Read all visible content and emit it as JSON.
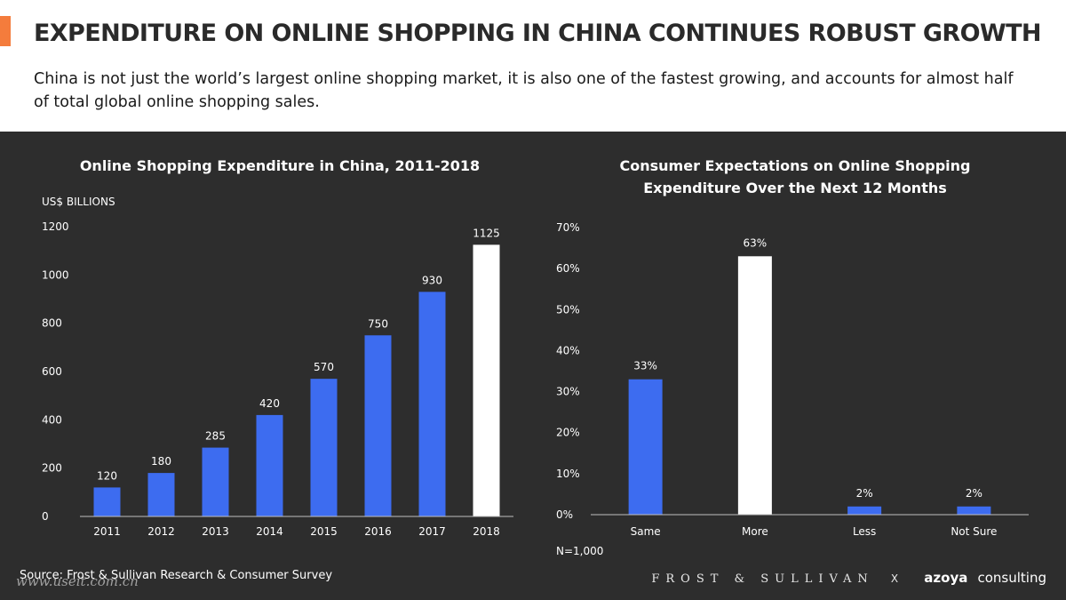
{
  "header": {
    "title": "EXPENDITURE ON ONLINE SHOPPING IN CHINA CONTINUES ROBUST GROWTH",
    "subtitle": "China is not just the world’s largest online shopping market, it is also one of the fastest growing, and accounts for almost half of total global online shopping sales."
  },
  "colors": {
    "accent": "#f47c3c",
    "bar": "#3d6cf0",
    "highlight": "#ffffff",
    "background": "#2d2d2d"
  },
  "chart_data": [
    {
      "type": "bar",
      "title": "Online Shopping Expenditure in China, 2011-2018",
      "ylabel": "US$ BILLIONS",
      "xlabel": "",
      "categories": [
        "2011",
        "2012",
        "2013",
        "2014",
        "2015",
        "2016",
        "2017",
        "2018"
      ],
      "values": [
        120,
        180,
        285,
        420,
        570,
        750,
        930,
        1125
      ],
      "highlight_index": 7,
      "ylim": [
        0,
        1200
      ],
      "yticks": [
        0,
        200,
        400,
        600,
        800,
        1000,
        1200
      ],
      "ytick_labels": [
        "0",
        "200",
        "400",
        "600",
        "800",
        "1000",
        "1200"
      ],
      "data_labels": [
        "120",
        "180",
        "285",
        "420",
        "570",
        "750",
        "930",
        "1125"
      ]
    },
    {
      "type": "bar",
      "title": "Consumer Expectations on Online Shopping Expenditure Over the Next 12 Months",
      "title_lines": [
        "Consumer Expectations on Online Shopping",
        "Expenditure Over the Next 12 Months"
      ],
      "categories": [
        "Same",
        "More",
        "Less",
        "Not Sure"
      ],
      "values": [
        33,
        63,
        2,
        2
      ],
      "highlight_index": 1,
      "ylim": [
        0,
        70
      ],
      "yticks": [
        0,
        10,
        20,
        30,
        40,
        50,
        60,
        70
      ],
      "ytick_labels": [
        "0%",
        "10%",
        "20%",
        "30%",
        "40%",
        "50%",
        "60%",
        "70%"
      ],
      "data_labels": [
        "33%",
        "63%",
        "2%",
        "2%"
      ],
      "note": "N=1,000"
    }
  ],
  "footer": {
    "source": "Source: Frost & Sullivan Research & Consumer Survey",
    "watermark": "www.useit.com.cn",
    "brand_frost": "FROST & SULLIVAN",
    "brand_x": "X",
    "brand_azoya": "azoya",
    "brand_consulting": "consulting"
  }
}
